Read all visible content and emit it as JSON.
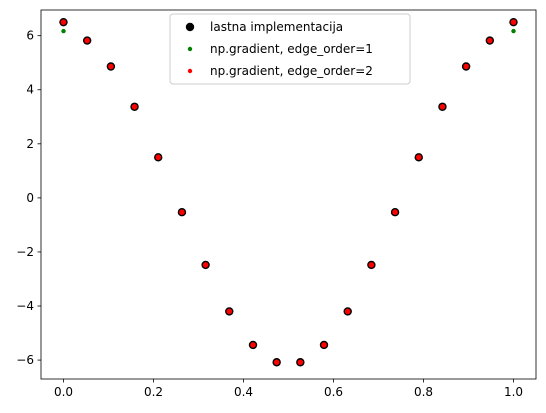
{
  "chart_data": {
    "type": "scatter",
    "title": "",
    "xlabel": "",
    "ylabel": "",
    "xlim": [
      -0.05,
      1.05
    ],
    "ylim": [
      -6.7,
      6.95
    ],
    "x_ticks": [
      0.0,
      0.2,
      0.4,
      0.6,
      0.8,
      1.0
    ],
    "x_tick_labels": [
      "0.0",
      "0.2",
      "0.4",
      "0.6",
      "0.8",
      "1.0"
    ],
    "y_ticks": [
      -6,
      -4,
      -2,
      0,
      2,
      4,
      6
    ],
    "y_tick_labels": [
      "−6",
      "−4",
      "−2",
      "0",
      "2",
      "4",
      "6"
    ],
    "grid": false,
    "legend": {
      "location": "upper center",
      "entries": [
        {
          "label": "lastna implementacija",
          "color": "#000000",
          "marker": "large-circle"
        },
        {
          "label": "np.gradient, edge_order=1",
          "color": "#008000",
          "marker": "small-circle"
        },
        {
          "label": "np.gradient, edge_order=2",
          "color": "#ff0000",
          "marker": "small-circle"
        }
      ]
    },
    "x": [
      0.0,
      0.0526,
      0.1053,
      0.1579,
      0.2105,
      0.2632,
      0.3158,
      0.3684,
      0.4211,
      0.4737,
      0.5263,
      0.5789,
      0.6316,
      0.6842,
      0.7368,
      0.7895,
      0.8421,
      0.8947,
      0.9474,
      1.0
    ],
    "series": [
      {
        "name": "lastna implementacija",
        "color": "#000000",
        "values": [
          6.5,
          5.82,
          4.86,
          3.37,
          1.5,
          -0.53,
          -2.48,
          -4.2,
          -5.44,
          -6.08,
          -6.08,
          -5.44,
          -4.2,
          -2.48,
          -0.53,
          1.5,
          3.37,
          4.86,
          5.82,
          6.5
        ]
      },
      {
        "name": "np.gradient, edge_order=1",
        "color": "#008000",
        "values": [
          6.17,
          5.82,
          4.86,
          3.37,
          1.5,
          -0.53,
          -2.48,
          -4.2,
          -5.44,
          -6.08,
          -6.08,
          -5.44,
          -4.2,
          -2.48,
          -0.53,
          1.5,
          3.37,
          4.86,
          5.82,
          6.17
        ]
      },
      {
        "name": "np.gradient, edge_order=2",
        "color": "#ff0000",
        "values": [
          6.5,
          5.82,
          4.86,
          3.37,
          1.5,
          -0.53,
          -2.48,
          -4.2,
          -5.44,
          -6.08,
          -6.08,
          -5.44,
          -4.2,
          -2.48,
          -0.53,
          1.5,
          3.37,
          4.86,
          5.82,
          6.5
        ]
      }
    ]
  }
}
